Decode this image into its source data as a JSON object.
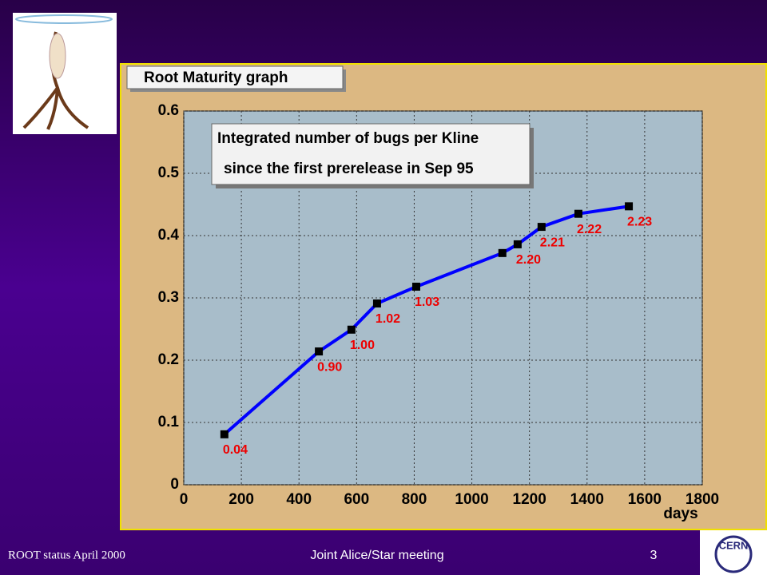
{
  "chart_data": {
    "type": "line",
    "title": "Root Maturity graph",
    "annotation": [
      "Integrated number of bugs per Kline",
      "since the first prerelease in Sep 95"
    ],
    "xlabel": "days",
    "x": [
      141,
      469,
      582,
      671,
      807,
      1106,
      1159,
      1242,
      1370,
      1545
    ],
    "values": [
      0.081,
      0.214,
      0.249,
      0.291,
      0.318,
      0.372,
      0.386,
      0.414,
      0.435,
      0.447
    ],
    "point_labels": [
      "0.04",
      "0.90",
      "1.00",
      "1.02",
      "1.03",
      null,
      "2.20",
      "2.21",
      "2.22",
      "2.23"
    ],
    "color": "#0000ff",
    "xlim": [
      0,
      1800
    ],
    "xticks": [
      0,
      200,
      400,
      600,
      800,
      1000,
      1200,
      1400,
      1600,
      1800
    ],
    "ylim": [
      0,
      0.6
    ],
    "yticks": [
      0,
      0.1,
      0.2,
      0.3,
      0.4,
      0.5,
      0.6
    ],
    "grid": true
  },
  "footer": {
    "left": "ROOT status April 2000",
    "center": "Joint Alice/Star meeting",
    "page": "3"
  }
}
